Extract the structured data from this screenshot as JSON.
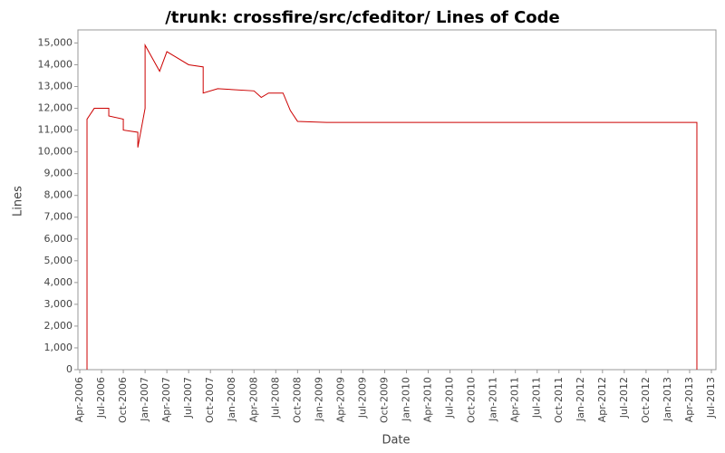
{
  "chart_data": {
    "type": "line",
    "title": "/trunk: crossfire/src/cfeditor/ Lines of Code",
    "x_label": "Date",
    "y_label": "Lines",
    "x": [
      "2006-05",
      "2006-05",
      "2006-06",
      "2006-08",
      "2006-08",
      "2006-10",
      "2006-10",
      "2006-12",
      "2006-12",
      "2007-01",
      "2007-01",
      "2007-02",
      "2007-03",
      "2007-04",
      "2007-05",
      "2007-07",
      "2007-09",
      "2007-09",
      "2007-11",
      "2008-04",
      "2008-05",
      "2008-06",
      "2008-08",
      "2008-09",
      "2008-10",
      "2009-02",
      "2013-05",
      "2013-05"
    ],
    "series": [
      {
        "name": "Lines",
        "color": "#cc0000",
        "values": [
          0,
          11500,
          12000,
          12000,
          11650,
          11500,
          11000,
          10900,
          10200,
          12000,
          14900,
          14300,
          13700,
          14600,
          14400,
          14000,
          13900,
          12700,
          12900,
          12800,
          12500,
          12700,
          12700,
          11900,
          11400,
          11350,
          11350,
          0
        ]
      }
    ],
    "xlim": [
      "2006-04",
      "2013-07"
    ],
    "xticks": [
      {
        "value": "2006-04",
        "label": "Apr-2006"
      },
      {
        "value": "2006-07",
        "label": "Jul-2006"
      },
      {
        "value": "2006-10",
        "label": "Oct-2006"
      },
      {
        "value": "2007-01",
        "label": "Jan-2007"
      },
      {
        "value": "2007-04",
        "label": "Apr-2007"
      },
      {
        "value": "2007-07",
        "label": "Jul-2007"
      },
      {
        "value": "2007-10",
        "label": "Oct-2007"
      },
      {
        "value": "2008-01",
        "label": "Jan-2008"
      },
      {
        "value": "2008-04",
        "label": "Apr-2008"
      },
      {
        "value": "2008-07",
        "label": "Jul-2008"
      },
      {
        "value": "2008-10",
        "label": "Oct-2008"
      },
      {
        "value": "2009-01",
        "label": "Jan-2009"
      },
      {
        "value": "2009-04",
        "label": "Apr-2009"
      },
      {
        "value": "2009-07",
        "label": "Jul-2009"
      },
      {
        "value": "2009-10",
        "label": "Oct-2009"
      },
      {
        "value": "2010-01",
        "label": "Jan-2010"
      },
      {
        "value": "2010-04",
        "label": "Apr-2010"
      },
      {
        "value": "2010-07",
        "label": "Jul-2010"
      },
      {
        "value": "2010-10",
        "label": "Oct-2010"
      },
      {
        "value": "2011-01",
        "label": "Jan-2011"
      },
      {
        "value": "2011-04",
        "label": "Apr-2011"
      },
      {
        "value": "2011-07",
        "label": "Jul-2011"
      },
      {
        "value": "2011-10",
        "label": "Oct-2011"
      },
      {
        "value": "2012-01",
        "label": "Jan-2012"
      },
      {
        "value": "2012-04",
        "label": "Apr-2012"
      },
      {
        "value": "2012-07",
        "label": "Jul-2012"
      },
      {
        "value": "2012-10",
        "label": "Oct-2012"
      },
      {
        "value": "2013-01",
        "label": "Jan-2013"
      },
      {
        "value": "2013-04",
        "label": "Apr-2013"
      },
      {
        "value": "2013-07",
        "label": "Jul-2013"
      }
    ],
    "ylim": [
      0,
      15600
    ],
    "yticks": [
      0,
      {
        "value": 1000,
        "label": "1,000"
      },
      {
        "value": 2000,
        "label": "2,000"
      },
      {
        "value": 3000,
        "label": "3,000"
      },
      {
        "value": 4000,
        "label": "4,000"
      },
      {
        "value": 5000,
        "label": "5,000"
      },
      {
        "value": 6000,
        "label": "6,000"
      },
      {
        "value": 7000,
        "label": "7,000"
      },
      {
        "value": 8000,
        "label": "8,000"
      },
      {
        "value": 9000,
        "label": "9,000"
      },
      {
        "value": 10000,
        "label": "10,000"
      },
      {
        "value": 11000,
        "label": "11,000"
      },
      {
        "value": 12000,
        "label": "12,000"
      },
      {
        "value": 13000,
        "label": "13,000"
      },
      {
        "value": 14000,
        "label": "14,000"
      },
      {
        "value": 15000,
        "label": "15,000"
      }
    ],
    "grid": false
  }
}
